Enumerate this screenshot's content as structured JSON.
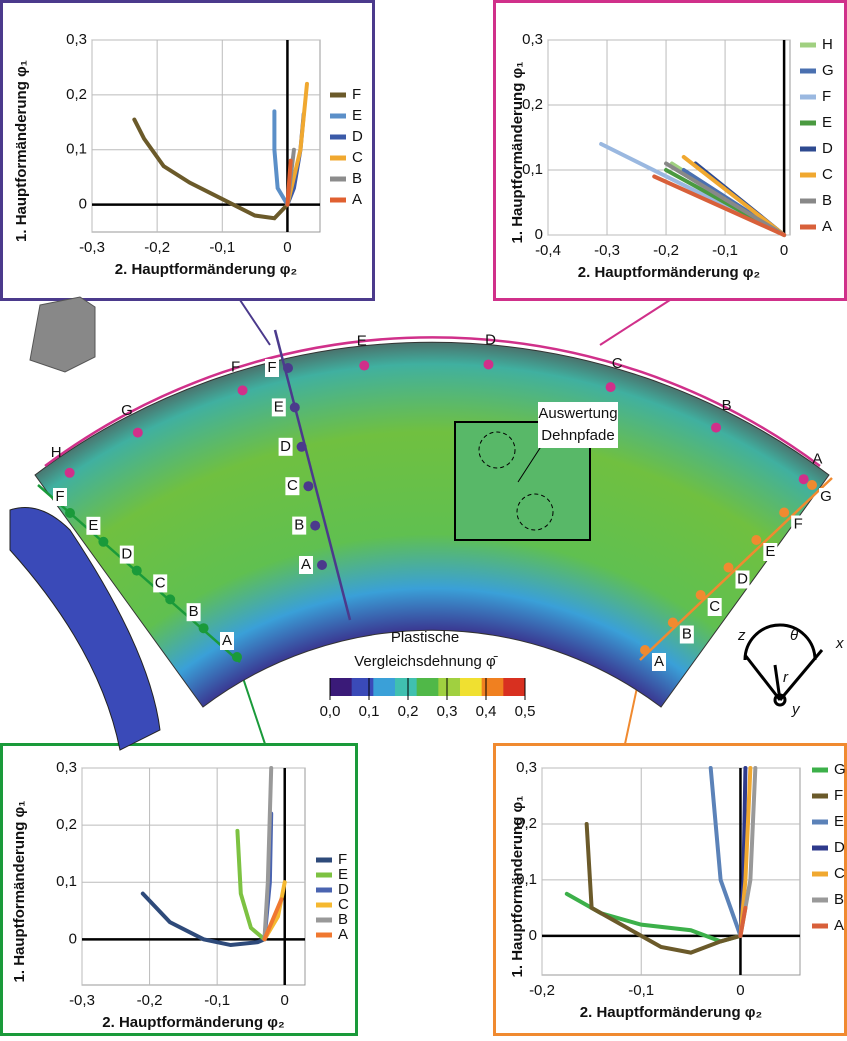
{
  "chart_data": [
    {
      "type": "line",
      "xlabel": "2. Hauptformänderung φ₂",
      "ylabel": "1. Hauptformänderung φ₁",
      "xlim": [
        -0.3,
        0.05
      ],
      "ylim": [
        -0.05,
        0.3
      ],
      "xticks": [
        {
          "value": -0.3,
          "label": "-0,3"
        },
        {
          "value": -0.2,
          "label": "-0,2"
        },
        {
          "value": -0.1,
          "label": "-0,1"
        },
        0
      ],
      "yticks": [
        0,
        {
          "value": 0.1,
          "label": "0,1"
        },
        {
          "value": 0.2,
          "label": "0,2"
        },
        {
          "value": 0.3,
          "label": "0,3"
        }
      ],
      "grid": true,
      "series": [
        {
          "name": "F",
          "color": "#6b5a2a",
          "x": [
            -0.235,
            -0.22,
            -0.19,
            -0.15,
            -0.1,
            -0.05,
            -0.02,
            0
          ],
          "values": [
            0.155,
            0.12,
            0.07,
            0.04,
            0.01,
            -0.02,
            -0.025,
            0
          ]
        },
        {
          "name": "E",
          "color": "#5b8fc8",
          "x": [
            -0.02,
            -0.02,
            -0.015,
            0
          ],
          "values": [
            0.17,
            0.1,
            0.03,
            0
          ]
        },
        {
          "name": "D",
          "color": "#3b5aa8",
          "x": [
            0.025,
            0.02,
            0.01,
            0
          ],
          "values": [
            0.165,
            0.1,
            0.03,
            0
          ]
        },
        {
          "name": "C",
          "color": "#f0a830",
          "x": [
            0.03,
            0.02,
            0
          ],
          "values": [
            0.22,
            0.1,
            0
          ]
        },
        {
          "name": "B",
          "color": "#8c8c8c",
          "x": [
            0.01,
            0
          ],
          "values": [
            0.1,
            0
          ]
        },
        {
          "name": "A",
          "color": "#e06030",
          "x": [
            0.005,
            0
          ],
          "values": [
            0.08,
            0
          ]
        }
      ]
    },
    {
      "type": "line",
      "xlabel": "2. Hauptformänderung φ₂",
      "ylabel": "1. Hauptformänderung φ₁",
      "xlim": [
        -0.4,
        0.01
      ],
      "ylim": [
        0,
        0.3
      ],
      "xticks": [
        {
          "value": -0.4,
          "label": "-0,4"
        },
        {
          "value": -0.3,
          "label": "-0,3"
        },
        {
          "value": -0.2,
          "label": "-0,2"
        },
        {
          "value": -0.1,
          "label": "-0,1"
        },
        0
      ],
      "yticks": [
        0,
        {
          "value": 0.1,
          "label": "0,1"
        },
        {
          "value": 0.2,
          "label": "0,2"
        },
        {
          "value": 0.3,
          "label": "0,3"
        }
      ],
      "grid": true,
      "series": [
        {
          "name": "H",
          "color": "#a0d080",
          "x": [
            -0.19,
            0
          ],
          "values": [
            0.11,
            0
          ]
        },
        {
          "name": "G",
          "color": "#4a70b0",
          "x": [
            -0.17,
            0
          ],
          "values": [
            0.1,
            0
          ]
        },
        {
          "name": "F",
          "color": "#9ab8e0",
          "x": [
            -0.31,
            0
          ],
          "values": [
            0.14,
            0
          ]
        },
        {
          "name": "E",
          "color": "#4a9a40",
          "x": [
            -0.2,
            0
          ],
          "values": [
            0.1,
            0
          ]
        },
        {
          "name": "D",
          "color": "#2e4a90",
          "x": [
            -0.15,
            0
          ],
          "values": [
            0.11,
            0
          ]
        },
        {
          "name": "C",
          "color": "#f0a830",
          "x": [
            -0.17,
            0
          ],
          "values": [
            0.12,
            0
          ]
        },
        {
          "name": "B",
          "color": "#888888",
          "x": [
            -0.2,
            0
          ],
          "values": [
            0.11,
            0
          ]
        },
        {
          "name": "A",
          "color": "#d8603a",
          "x": [
            -0.22,
            0
          ],
          "values": [
            0.09,
            0
          ]
        }
      ]
    },
    {
      "type": "line",
      "xlabel": "2. Hauptformänderung φ₂",
      "ylabel": "1. Hauptformänderung φ₁",
      "xlim": [
        -0.3,
        0.03
      ],
      "ylim": [
        -0.08,
        0.3
      ],
      "xticks": [
        {
          "value": -0.3,
          "label": "-0,3"
        },
        {
          "value": -0.2,
          "label": "-0,2"
        },
        {
          "value": -0.1,
          "label": "-0,1"
        },
        0
      ],
      "yticks": [
        0,
        {
          "value": 0.1,
          "label": "0,1"
        },
        {
          "value": 0.2,
          "label": "0,2"
        },
        {
          "value": 0.3,
          "label": "0,3"
        }
      ],
      "grid": true,
      "series": [
        {
          "name": "F",
          "color": "#2e4a7a",
          "x": [
            -0.21,
            -0.17,
            -0.12,
            -0.08,
            -0.04,
            -0.03
          ],
          "values": [
            0.08,
            0.03,
            0,
            -0.01,
            -0.005,
            0
          ]
        },
        {
          "name": "E",
          "color": "#7dc242",
          "x": [
            -0.07,
            -0.065,
            -0.05,
            -0.03
          ],
          "values": [
            0.19,
            0.08,
            0.02,
            0
          ]
        },
        {
          "name": "D",
          "color": "#4a64b0",
          "x": [
            -0.02,
            -0.022,
            -0.03
          ],
          "values": [
            0.22,
            0.1,
            0
          ]
        },
        {
          "name": "C",
          "color": "#f5b830",
          "x": [
            0,
            -0.01,
            -0.03
          ],
          "values": [
            0.1,
            0.04,
            0
          ]
        },
        {
          "name": "B",
          "color": "#999999",
          "x": [
            -0.02,
            -0.025,
            -0.03
          ],
          "values": [
            0.3,
            0.1,
            0
          ]
        },
        {
          "name": "A",
          "color": "#f07830",
          "x": [
            -0.005,
            -0.03
          ],
          "values": [
            0.07,
            0
          ]
        }
      ]
    },
    {
      "type": "line",
      "xlabel": "2. Hauptformänderung φ₂",
      "ylabel": "1. Hauptformänderung φ₁",
      "xlim": [
        -0.2,
        0.06
      ],
      "ylim": [
        -0.07,
        0.3
      ],
      "xticks": [
        {
          "value": -0.2,
          "label": "-0,2"
        },
        {
          "value": -0.1,
          "label": "-0,1"
        },
        0
      ],
      "yticks": [
        0,
        {
          "value": 0.1,
          "label": "0,1"
        },
        {
          "value": 0.2,
          "label": "0,2"
        },
        {
          "value": 0.3,
          "label": "0,3"
        }
      ],
      "grid": true,
      "series": [
        {
          "name": "G",
          "color": "#3cb04a",
          "x": [
            -0.175,
            -0.14,
            -0.1,
            -0.05,
            -0.02,
            0
          ],
          "values": [
            0.075,
            0.04,
            0.02,
            0.01,
            -0.01,
            0
          ]
        },
        {
          "name": "F",
          "color": "#6b5a2a",
          "x": [
            -0.155,
            -0.15,
            -0.12,
            -0.08,
            -0.05,
            -0.02,
            0
          ],
          "values": [
            0.2,
            0.05,
            0.02,
            -0.02,
            -0.03,
            -0.01,
            0
          ]
        },
        {
          "name": "E",
          "color": "#5b82b8",
          "x": [
            -0.03,
            -0.02,
            0
          ],
          "values": [
            0.3,
            0.1,
            0
          ]
        },
        {
          "name": "D",
          "color": "#2e3a8c",
          "x": [
            0.005,
            0.003,
            0
          ],
          "values": [
            0.3,
            0.1,
            0
          ]
        },
        {
          "name": "C",
          "color": "#f0a830",
          "x": [
            0.01,
            0.005,
            0
          ],
          "values": [
            0.3,
            0.1,
            0
          ]
        },
        {
          "name": "B",
          "color": "#999999",
          "x": [
            0.015,
            0.01,
            0
          ],
          "values": [
            0.3,
            0.1,
            0
          ]
        },
        {
          "name": "A",
          "color": "#d8603a",
          "x": [
            0.005,
            0
          ],
          "values": [
            0.05,
            0
          ]
        }
      ]
    }
  ],
  "diagram": {
    "arc": [
      "H",
      "G",
      "F",
      "E",
      "D",
      "C",
      "B",
      "A"
    ],
    "radial": [
      "A",
      "B",
      "C",
      "D",
      "E",
      "F"
    ],
    "left_edge": [
      "A",
      "B",
      "C",
      "D",
      "E",
      "F"
    ],
    "right_edge": [
      "A",
      "B",
      "C",
      "D",
      "E",
      "F",
      "G"
    ],
    "annotation": [
      "Auswertung",
      "Dehnpfade"
    ],
    "colorbar": {
      "title": [
        "Plastische",
        "Vergleichsdehnung φ̄"
      ],
      "colors": [
        "#3a1a78",
        "#3a4ab8",
        "#3aa0d8",
        "#40c0b0",
        "#50b848",
        "#a0d040",
        "#f0e030",
        "#f08020",
        "#d83020"
      ],
      "ticks": [
        {
          "value": 0,
          "label": "0,0"
        },
        {
          "value": 0.1,
          "label": "0,1"
        },
        {
          "value": 0.2,
          "label": "0,2"
        },
        {
          "value": 0.3,
          "label": "0,3"
        },
        {
          "value": 0.4,
          "label": "0,4"
        },
        {
          "value": 0.5,
          "label": "0,5"
        }
      ],
      "lim": [
        0,
        0.5
      ]
    },
    "coordinates": [
      "z",
      "θ",
      "x",
      "r",
      "y"
    ]
  }
}
